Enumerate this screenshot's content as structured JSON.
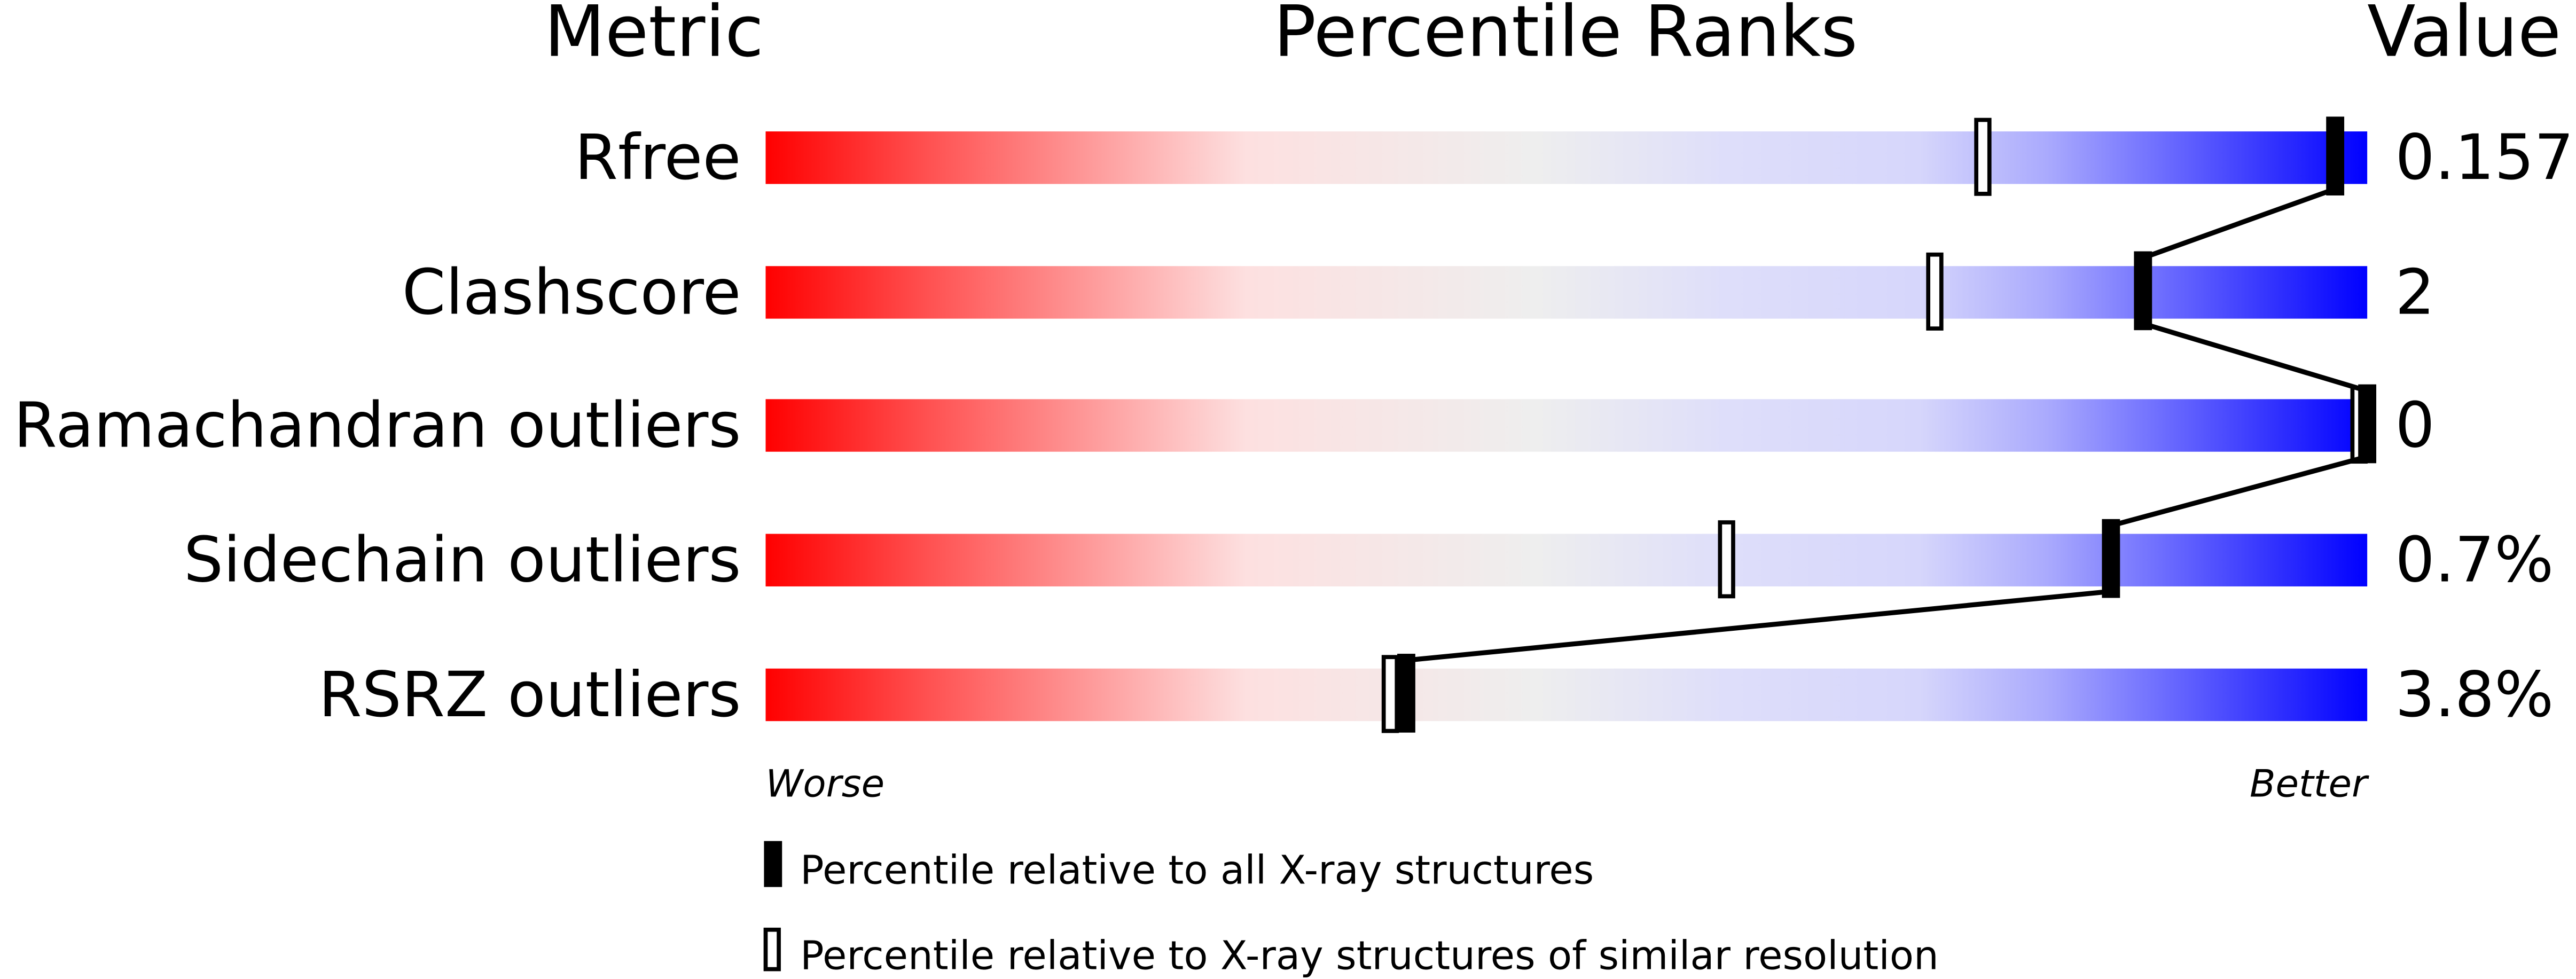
{
  "chart_data": {
    "type": "percentile-bar",
    "headers": {
      "metric": "Metric",
      "ranks": "Percentile Ranks",
      "value": "Value"
    },
    "xlim": [
      0,
      100
    ],
    "axis_labels": {
      "left": "Worse",
      "right": "Better"
    },
    "colors": {
      "worse": "#ff0000",
      "mid": "#eeeeee",
      "better": "#0000ff",
      "marker": "#000000"
    },
    "rows": [
      {
        "metric": "Rfree",
        "value": "0.157",
        "percentile_all": 98,
        "percentile_similar": 76
      },
      {
        "metric": "Clashscore",
        "value": "2",
        "percentile_all": 86,
        "percentile_similar": 73
      },
      {
        "metric": "Ramachandran outliers",
        "value": "0",
        "percentile_all": 100,
        "percentile_similar": 100
      },
      {
        "metric": "Sidechain outliers",
        "value": "0.7%",
        "percentile_all": 84,
        "percentile_similar": 60
      },
      {
        "metric": "RSRZ outliers",
        "value": "3.8%",
        "percentile_all": 40,
        "percentile_similar": 39
      }
    ],
    "legend": [
      {
        "marker": "filled",
        "label": "Percentile relative to all X-ray structures"
      },
      {
        "marker": "open",
        "label": "Percentile relative to X-ray structures of similar resolution"
      }
    ]
  }
}
